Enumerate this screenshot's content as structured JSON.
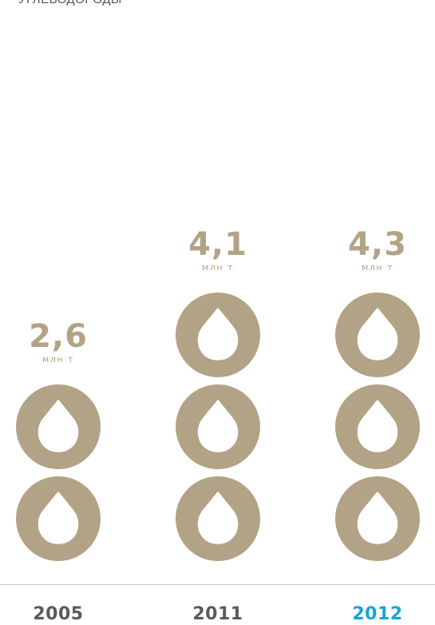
{
  "title": "УГЛЕВОДОРОДЫ",
  "colors": {
    "drop": "#b2a386",
    "value": "#b2a386",
    "year_default": "#5a5a5a",
    "year_highlight": "#1aa3d9",
    "axis": "#c8c8c8"
  },
  "icon": "oil-drop-icon",
  "chart_data": {
    "type": "bar",
    "categories": [
      "2005",
      "2011",
      "2012"
    ],
    "values": [
      2.6,
      4.1,
      4.3
    ],
    "value_labels": [
      "2,6",
      "4,1",
      "4,3"
    ],
    "unit": "млн т",
    "highlight_category": "2012",
    "bars": [
      {
        "year": "2005",
        "value": 2.6,
        "label": "2,6",
        "icon_count": 2
      },
      {
        "year": "2011",
        "value": 4.1,
        "label": "4,1",
        "icon_count": 3
      },
      {
        "year": "2012",
        "value": 4.3,
        "label": "4,3",
        "icon_count": 3
      }
    ]
  }
}
